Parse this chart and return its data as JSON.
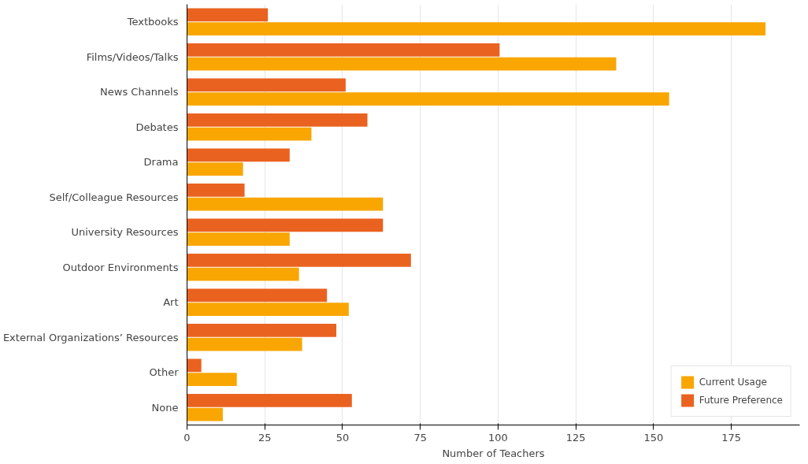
{
  "chart_data": {
    "type": "bar",
    "orientation": "horizontal",
    "xlabel": "Number of Teachers",
    "categories": [
      "Textbooks",
      "Films/Videos/Talks",
      "News Channels",
      "Debates",
      "Drama",
      "Self/Colleague Resources",
      "University Resources",
      "Outdoor Environments",
      "Art",
      "External Organizations’ Resources",
      "Other",
      "None"
    ],
    "series": [
      {
        "name": "Current Usage",
        "color": "#f9a602",
        "values": [
          186,
          138,
          155,
          40,
          18,
          63,
          33,
          36,
          52,
          37,
          16,
          11.5
        ]
      },
      {
        "name": "Future Preference",
        "color": "#ea6220",
        "values": [
          26,
          100.5,
          51,
          58,
          33,
          18.5,
          63,
          72,
          45,
          48,
          4.6,
          53
        ]
      }
    ],
    "xlim": [
      0,
      197
    ],
    "xticks": [
      0,
      25,
      50,
      75,
      100,
      125,
      150,
      175
    ],
    "grid": "x",
    "legend": "bottom right"
  }
}
